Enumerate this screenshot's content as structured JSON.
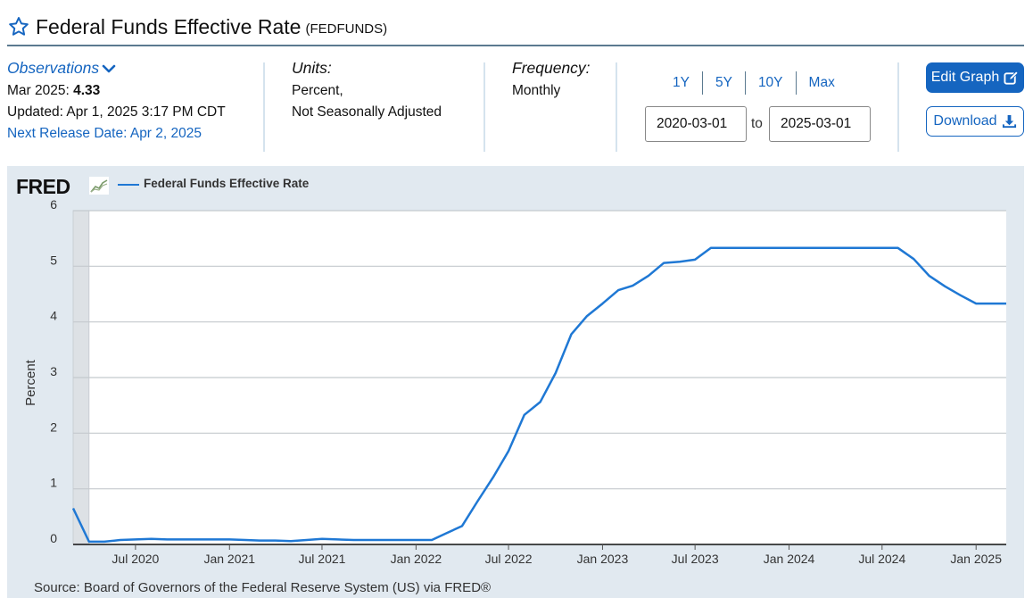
{
  "header": {
    "title": "Federal Funds Effective Rate",
    "series_id": "(FEDFUNDS)",
    "star_icon": "star-icon"
  },
  "observations": {
    "toggle_label": "Observations",
    "latest_label": "Mar 2025:",
    "latest_value": "4.33",
    "updated": "Updated: Apr 1, 2025 3:17 PM CDT",
    "next_release": "Next Release Date: Apr 2, 2025"
  },
  "units": {
    "label": "Units:",
    "line1": "Percent,",
    "line2": "Not Seasonally Adjusted"
  },
  "frequency": {
    "label": "Frequency:",
    "value": "Monthly"
  },
  "range": {
    "buttons": [
      "1Y",
      "5Y",
      "10Y",
      "Max"
    ],
    "start": "2020-03-01",
    "to_label": "to",
    "end": "2025-03-01"
  },
  "actions": {
    "edit_label": "Edit Graph",
    "download_label": "Download"
  },
  "colors": {
    "accent": "#1565c0",
    "series": "#1f78d4",
    "chart_bg": "#e1e9f0"
  },
  "chart": {
    "logo": "FRED",
    "legend": "Federal Funds Effective Rate",
    "source": "Source: Board of Governors of the Federal Reserve System (US) via FRED®"
  },
  "chart_data": {
    "type": "line",
    "title": "",
    "xlabel": "",
    "ylabel": "Percent",
    "ylim": [
      0,
      6
    ],
    "yticks": [
      "0",
      "1",
      "2",
      "3",
      "4",
      "5",
      "6"
    ],
    "xticks": [
      {
        "label": "Jul 2020",
        "date": "2020-07-01"
      },
      {
        "label": "Jan 2021",
        "date": "2021-01-01"
      },
      {
        "label": "Jul 2021",
        "date": "2021-07-01"
      },
      {
        "label": "Jan 2022",
        "date": "2022-01-01"
      },
      {
        "label": "Jul 2022",
        "date": "2022-07-01"
      },
      {
        "label": "Jan 2023",
        "date": "2023-01-01"
      },
      {
        "label": "Jul 2023",
        "date": "2023-07-01"
      },
      {
        "label": "Jan 2024",
        "date": "2024-01-01"
      },
      {
        "label": "Jul 2024",
        "date": "2024-07-01"
      },
      {
        "label": "Jan 2025",
        "date": "2025-01-01"
      }
    ],
    "grid": true,
    "legend_position": "top-left",
    "recession_shading": {
      "start": "2020-03-01",
      "end": "2020-04-01"
    },
    "series": [
      {
        "name": "Federal Funds Effective Rate",
        "x": [
          "2020-03-01",
          "2020-04-01",
          "2020-05-01",
          "2020-06-01",
          "2020-07-01",
          "2020-08-01",
          "2020-09-01",
          "2020-10-01",
          "2020-11-01",
          "2020-12-01",
          "2021-01-01",
          "2021-02-01",
          "2021-03-01",
          "2021-04-01",
          "2021-05-01",
          "2021-06-01",
          "2021-07-01",
          "2021-08-01",
          "2021-09-01",
          "2021-10-01",
          "2021-11-01",
          "2021-12-01",
          "2022-01-01",
          "2022-02-01",
          "2022-03-01",
          "2022-04-01",
          "2022-05-01",
          "2022-06-01",
          "2022-07-01",
          "2022-08-01",
          "2022-09-01",
          "2022-10-01",
          "2022-11-01",
          "2022-12-01",
          "2023-01-01",
          "2023-02-01",
          "2023-03-01",
          "2023-04-01",
          "2023-05-01",
          "2023-06-01",
          "2023-07-01",
          "2023-08-01",
          "2023-09-01",
          "2023-10-01",
          "2023-11-01",
          "2023-12-01",
          "2024-01-01",
          "2024-02-01",
          "2024-03-01",
          "2024-04-01",
          "2024-05-01",
          "2024-06-01",
          "2024-07-01",
          "2024-08-01",
          "2024-09-01",
          "2024-10-01",
          "2024-11-01",
          "2024-12-01",
          "2025-01-01",
          "2025-02-01",
          "2025-03-01"
        ],
        "values": [
          0.65,
          0.05,
          0.05,
          0.08,
          0.09,
          0.1,
          0.09,
          0.09,
          0.09,
          0.09,
          0.09,
          0.08,
          0.07,
          0.07,
          0.06,
          0.08,
          0.1,
          0.09,
          0.08,
          0.08,
          0.08,
          0.08,
          0.08,
          0.08,
          0.2,
          0.33,
          0.77,
          1.21,
          1.68,
          2.33,
          2.56,
          3.08,
          3.78,
          4.1,
          4.33,
          4.57,
          4.65,
          4.83,
          5.06,
          5.08,
          5.12,
          5.33,
          5.33,
          5.33,
          5.33,
          5.33,
          5.33,
          5.33,
          5.33,
          5.33,
          5.33,
          5.33,
          5.33,
          5.33,
          5.13,
          4.83,
          4.64,
          4.48,
          4.33,
          4.33,
          4.33
        ]
      }
    ]
  }
}
